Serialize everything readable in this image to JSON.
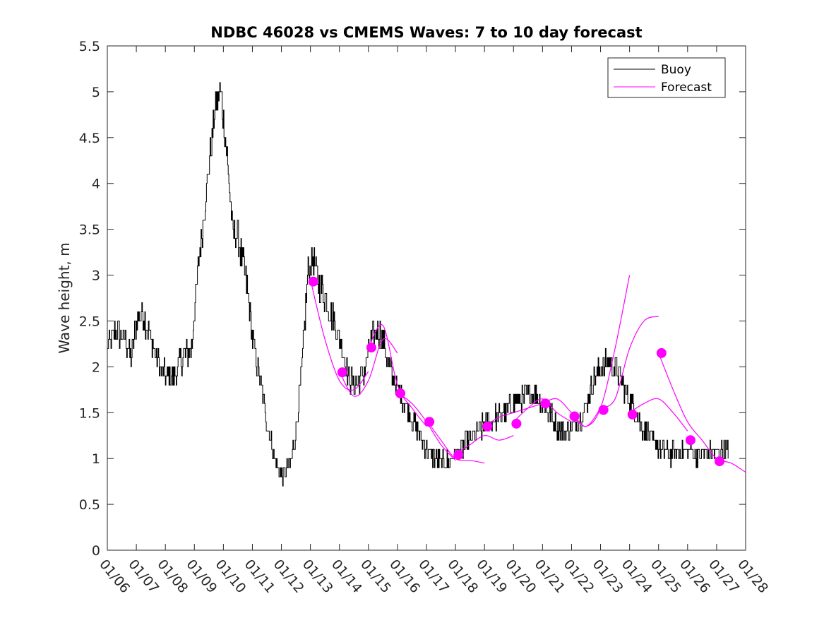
{
  "chart_data": {
    "type": "line",
    "title": "NDBC 46028 vs CMEMS Waves: 7 to 10 day forecast",
    "xlabel": "",
    "ylabel": "Wave height, m",
    "xlim": [
      0,
      22
    ],
    "ylim": [
      0,
      5.5
    ],
    "xticks": [
      0,
      1,
      2,
      3,
      4,
      5,
      6,
      7,
      8,
      9,
      10,
      11,
      12,
      13,
      14,
      15,
      16,
      17,
      18,
      19,
      20,
      21,
      22
    ],
    "xtick_labels": [
      "01/06",
      "01/07",
      "01/08",
      "01/09",
      "01/10",
      "01/11",
      "01/12",
      "01/13",
      "01/14",
      "01/15",
      "01/16",
      "01/17",
      "01/18",
      "01/19",
      "01/20",
      "01/21",
      "01/22",
      "01/23",
      "01/24",
      "01/25",
      "01/26",
      "01/27",
      "01/28"
    ],
    "yticks": [
      0,
      0.5,
      1,
      1.5,
      2,
      2.5,
      3,
      3.5,
      4,
      4.5,
      5,
      5.5
    ],
    "ytick_labels": [
      "0",
      "0.5",
      "1",
      "1.5",
      "2",
      "2.5",
      "3",
      "3.5",
      "4",
      "4.5",
      "5",
      "5.5"
    ],
    "legend": {
      "position": "top-right",
      "entries": [
        "Buoy",
        "Forecast"
      ]
    },
    "colors": {
      "buoy": "#000000",
      "forecast": "#ff00ff"
    },
    "series": [
      {
        "name": "Buoy",
        "color": "#000000",
        "x": [
          0,
          0.3,
          0.6,
          0.8,
          1.0,
          1.2,
          1.5,
          1.8,
          2.0,
          2.3,
          2.6,
          2.9,
          3.1,
          3.3,
          3.5,
          3.7,
          3.9,
          4.1,
          4.3,
          4.5,
          4.8,
          5.0,
          5.3,
          5.5,
          5.7,
          5.9,
          6.1,
          6.3,
          6.5,
          6.7,
          6.9,
          7.1,
          7.3,
          7.6,
          7.9,
          8.1,
          8.3,
          8.5,
          8.7,
          8.9,
          9.1,
          9.3,
          9.5,
          9.8,
          10.1,
          10.4,
          10.7,
          11.0,
          11.3,
          11.6,
          11.9,
          12.2,
          12.5,
          12.8,
          13.1,
          13.4,
          13.7,
          14.0,
          14.3,
          14.6,
          14.9,
          15.2,
          15.5,
          15.8,
          16.1,
          16.4,
          16.7,
          17.0,
          17.3,
          17.6,
          17.9,
          18.2,
          18.5,
          18.8,
          19.1,
          19.4,
          19.7,
          20.0,
          20.3,
          20.6,
          20.9,
          21.2,
          21.4
        ],
        "values": [
          2.2,
          2.4,
          2.3,
          2.1,
          2.5,
          2.6,
          2.3,
          2.0,
          1.9,
          1.9,
          2.1,
          2.2,
          3.0,
          3.6,
          4.2,
          4.8,
          5.0,
          4.4,
          3.5,
          3.4,
          2.9,
          2.3,
          1.8,
          1.4,
          1.1,
          0.85,
          0.8,
          0.95,
          1.3,
          2.0,
          3.0,
          3.2,
          2.9,
          2.7,
          2.4,
          2.2,
          1.9,
          1.8,
          1.85,
          2.0,
          2.3,
          2.4,
          2.3,
          1.9,
          1.7,
          1.5,
          1.3,
          1.1,
          1.0,
          0.95,
          1.0,
          1.1,
          1.2,
          1.3,
          1.4,
          1.45,
          1.5,
          1.6,
          1.65,
          1.7,
          1.65,
          1.5,
          1.35,
          1.3,
          1.35,
          1.5,
          1.8,
          2.0,
          2.05,
          1.95,
          1.7,
          1.5,
          1.3,
          1.2,
          1.1,
          1.05,
          1.05,
          1.1,
          1.05,
          1.05,
          1.05,
          1.1,
          1.05
        ]
      }
    ],
    "forecast_lines": [
      {
        "x": [
          7.0,
          7.5,
          8.0,
          8.5,
          9.0
        ],
        "values": [
          2.95,
          2.3,
          1.85,
          1.75,
          1.95
        ]
      },
      {
        "x": [
          8.0,
          8.5,
          9.0,
          9.5,
          10.0
        ],
        "values": [
          1.95,
          1.68,
          1.85,
          2.3,
          2.15
        ]
      },
      {
        "x": [
          9.0,
          9.5,
          10.0,
          10.5,
          11.0
        ],
        "values": [
          2.2,
          2.45,
          1.8,
          1.55,
          1.35
        ]
      },
      {
        "x": [
          10.0,
          10.5,
          11.0,
          11.5,
          12.0
        ],
        "values": [
          1.72,
          1.6,
          1.4,
          1.15,
          0.98
        ]
      },
      {
        "x": [
          11.0,
          11.5,
          12.0,
          12.5,
          13.0
        ],
        "values": [
          1.42,
          1.2,
          1.0,
          0.98,
          0.95
        ]
      },
      {
        "x": [
          12.0,
          12.5,
          13.0,
          13.5,
          14.0
        ],
        "values": [
          1.05,
          1.15,
          1.25,
          1.2,
          1.25
        ]
      },
      {
        "x": [
          13.0,
          13.5,
          14.0,
          14.5,
          15.0
        ],
        "values": [
          1.35,
          1.45,
          1.5,
          1.55,
          1.6
        ]
      },
      {
        "x": [
          14.0,
          14.5,
          15.0,
          15.5,
          16.0
        ],
        "values": [
          1.4,
          1.55,
          1.65,
          1.5,
          1.4
        ]
      },
      {
        "x": [
          15.0,
          15.5,
          16.0,
          16.5,
          17.0
        ],
        "values": [
          1.6,
          1.65,
          1.5,
          1.35,
          1.55
        ]
      },
      {
        "x": [
          16.0,
          16.5,
          17.0,
          17.5,
          18.0
        ],
        "values": [
          1.48,
          1.35,
          1.55,
          2.2,
          3.0
        ]
      },
      {
        "x": [
          17.0,
          17.5,
          18.0,
          18.5,
          19.0
        ],
        "values": [
          1.55,
          1.65,
          2.2,
          2.5,
          2.55
        ]
      },
      {
        "x": [
          18.0,
          18.5,
          19.0,
          19.5,
          20.0
        ],
        "values": [
          1.5,
          1.6,
          1.65,
          1.5,
          1.3
        ]
      },
      {
        "x": [
          19.0,
          19.5,
          20.0,
          20.5,
          21.0,
          21.5,
          22.0
        ],
        "values": [
          2.15,
          1.75,
          1.4,
          1.2,
          1.0,
          0.95,
          0.85
        ]
      }
    ],
    "forecast_points": {
      "x": [
        7.1,
        8.1,
        9.1,
        10.1,
        11.1,
        12.1,
        13.1,
        14.1,
        15.1,
        16.1,
        17.1,
        18.1,
        19.1,
        20.1,
        21.1
      ],
      "values": [
        2.93,
        1.94,
        2.21,
        1.71,
        1.4,
        1.04,
        1.35,
        1.38,
        1.6,
        1.46,
        1.53,
        1.48,
        2.15,
        1.2,
        0.97
      ]
    }
  }
}
